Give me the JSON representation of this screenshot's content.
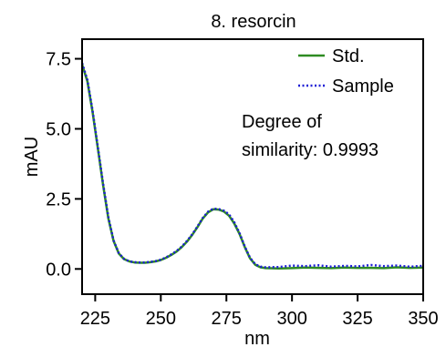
{
  "chart_data": {
    "type": "line",
    "title": "8. resorcin",
    "xlabel": "nm",
    "ylabel": "mAU",
    "xlim": [
      220,
      350
    ],
    "ylim": [
      -0.9,
      8.2
    ],
    "x_ticks": [
      225,
      250,
      275,
      300,
      325,
      350
    ],
    "y_ticks": [
      0.0,
      2.5,
      5.0,
      7.5
    ],
    "x_tick_labels": [
      "225",
      "250",
      "275",
      "300",
      "325",
      "350"
    ],
    "y_tick_labels": [
      "0.0",
      "2.5",
      "5.0",
      "7.5"
    ],
    "grid": false,
    "legend": "top-right",
    "annotation": [
      "Degree of",
      "similarity: 0.9993"
    ],
    "colors": {
      "std": "#2e8b22",
      "sample": "#1f1fd6"
    },
    "series": [
      {
        "name": "Std.",
        "style": "solid",
        "x": [
          220,
          222,
          224,
          226,
          228,
          230,
          232,
          234,
          236,
          238,
          240,
          242,
          244,
          246,
          248,
          250,
          252,
          254,
          256,
          258,
          260,
          262,
          264,
          266,
          268,
          270,
          272,
          274,
          276,
          278,
          280,
          282,
          284,
          286,
          288,
          290,
          295,
          300,
          305,
          310,
          315,
          320,
          325,
          330,
          335,
          340,
          345,
          350
        ],
        "values": [
          7.3,
          6.7,
          5.6,
          4.3,
          3.0,
          1.8,
          1.0,
          0.55,
          0.35,
          0.27,
          0.23,
          0.22,
          0.22,
          0.24,
          0.27,
          0.32,
          0.4,
          0.5,
          0.62,
          0.78,
          0.98,
          1.22,
          1.5,
          1.8,
          2.02,
          2.13,
          2.12,
          2.05,
          1.9,
          1.62,
          1.25,
          0.78,
          0.38,
          0.15,
          0.06,
          0.03,
          0.02,
          0.03,
          0.05,
          0.04,
          0.03,
          0.05,
          0.04,
          0.04,
          0.03,
          0.06,
          0.04,
          0.05
        ]
      },
      {
        "name": "Sample",
        "style": "dotted",
        "x": [
          220,
          222,
          224,
          226,
          228,
          230,
          232,
          234,
          236,
          238,
          240,
          242,
          244,
          246,
          248,
          250,
          252,
          254,
          256,
          258,
          260,
          262,
          264,
          266,
          268,
          270,
          272,
          274,
          276,
          278,
          280,
          282,
          284,
          286,
          288,
          290,
          295,
          300,
          305,
          310,
          315,
          320,
          325,
          330,
          335,
          340,
          345,
          350
        ],
        "values": [
          7.35,
          6.75,
          5.65,
          4.35,
          3.05,
          1.85,
          1.02,
          0.56,
          0.36,
          0.27,
          0.24,
          0.23,
          0.23,
          0.25,
          0.28,
          0.33,
          0.41,
          0.52,
          0.64,
          0.8,
          1.0,
          1.24,
          1.52,
          1.82,
          2.04,
          2.15,
          2.14,
          2.08,
          1.95,
          1.66,
          1.28,
          0.8,
          0.4,
          0.17,
          0.08,
          0.06,
          0.07,
          0.12,
          0.1,
          0.13,
          0.08,
          0.11,
          0.09,
          0.14,
          0.1,
          0.12,
          0.08,
          0.11
        ]
      }
    ]
  }
}
